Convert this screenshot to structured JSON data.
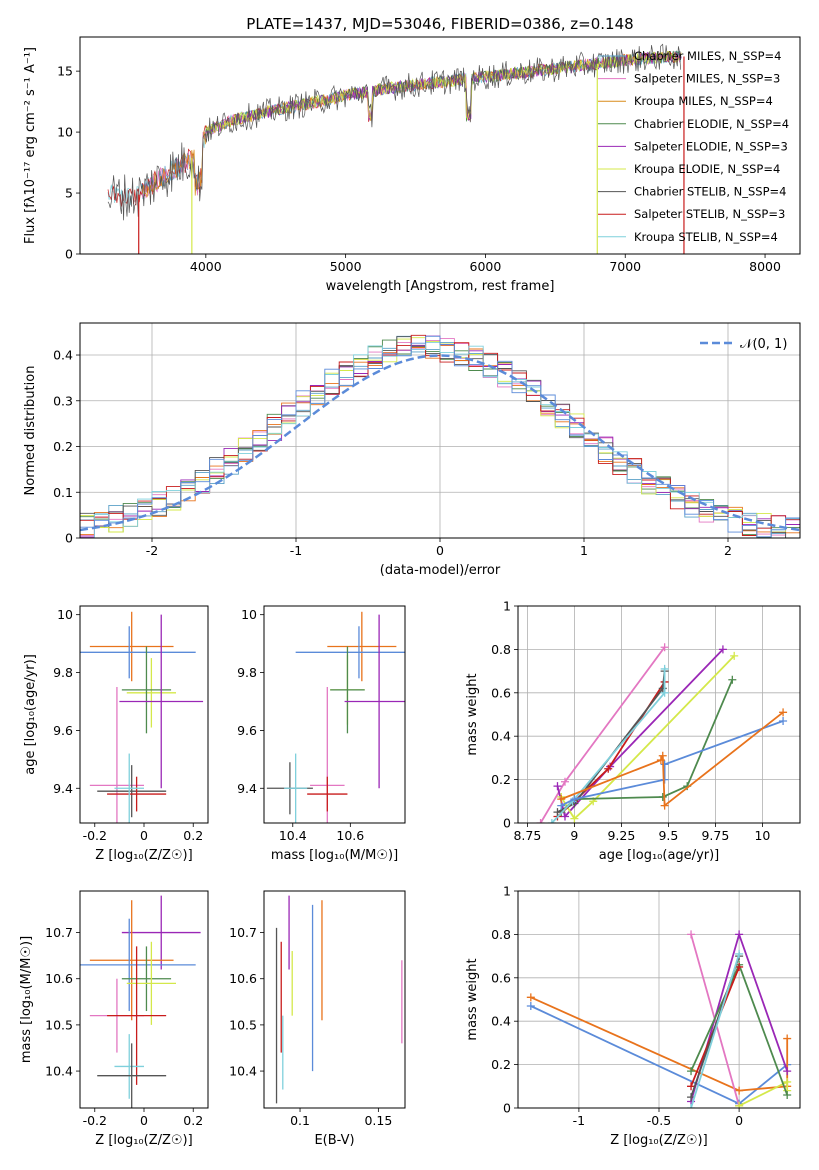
{
  "colors": {
    "chabrier_miles": "#5aa0c8",
    "salpeter_miles": "#e377c2",
    "kroupa_miles": "#d98c1a",
    "chabrier_elodie": "#4e8a4e",
    "salpeter_elodie": "#9a27b6",
    "kroupa_elodie": "#d4e84a",
    "chabrier_stelib": "#555555",
    "salpeter_stelib": "#c81c1c",
    "kroupa_stelib": "#7fd0dc",
    "blue": "#5b8bd9",
    "orange": "#e8731c",
    "normal": "#5b8bd9"
  },
  "chart_data": [
    {
      "id": "spectrum",
      "type": "line",
      "title": "PLATE=1437, MJD=53046, FIBERID=0386, z=0.148",
      "xlabel": "wavelength [Angstrom, rest frame]",
      "ylabel": "Flux [fλ10⁻¹⁷ erg cm⁻² s⁻¹ A⁻¹]",
      "xlim": [
        3100,
        8250
      ],
      "ylim": [
        0,
        17.8
      ],
      "xticks": [
        4000,
        5000,
        6000,
        7000,
        8000
      ],
      "yticks": [
        0,
        5,
        10,
        15
      ],
      "legend_position": "top-right",
      "series": [
        {
          "name": "Chabrier MILES, N_SSP=4",
          "key": "chabrier_miles"
        },
        {
          "name": "Salpeter MILES, N_SSP=3",
          "key": "salpeter_miles"
        },
        {
          "name": "Kroupa MILES, N_SSP=4",
          "key": "kroupa_miles"
        },
        {
          "name": "Chabrier ELODIE, N_SSP=4",
          "key": "chabrier_elodie"
        },
        {
          "name": "Salpeter ELODIE, N_SSP=3",
          "key": "salpeter_elodie"
        },
        {
          "name": "Kroupa ELODIE, N_SSP=4",
          "key": "kroupa_elodie"
        },
        {
          "name": "Chabrier STELIB, N_SSP=4",
          "key": "chabrier_stelib"
        },
        {
          "name": "Salpeter STELIB, N_SSP=3",
          "key": "salpeter_stelib"
        },
        {
          "name": "Kroupa STELIB, N_SSP=4",
          "key": "kroupa_stelib"
        }
      ],
      "continuum": {
        "x": [
          3300,
          3500,
          3650,
          3800,
          3950,
          4000,
          4200,
          4500,
          4800,
          5000,
          5300,
          5600,
          5900,
          6200,
          6500,
          6800,
          7000,
          7200,
          7400
        ],
        "y": [
          4.8,
          4.7,
          6.0,
          7.2,
          8.2,
          10.0,
          11.0,
          11.8,
          12.5,
          13.0,
          13.6,
          14.0,
          14.4,
          14.8,
          15.2,
          15.6,
          15.9,
          16.1,
          16.2
        ]
      },
      "drops": [
        {
          "x": 3520,
          "key": "salpeter_stelib"
        },
        {
          "x": 3900,
          "key": "kroupa_elodie"
        },
        {
          "x": 6800,
          "key": "kroupa_elodie"
        },
        {
          "x": 7420,
          "key": "salpeter_stelib"
        }
      ]
    },
    {
      "id": "residuals",
      "type": "line",
      "xlabel": "(data-model)/error",
      "ylabel": "Normed distribution",
      "xlim": [
        -2.5,
        2.5
      ],
      "ylim": [
        0,
        0.47
      ],
      "xticks": [
        -2,
        -1,
        0,
        1,
        2
      ],
      "yticks": [
        0.0,
        0.1,
        0.2,
        0.3,
        0.4
      ],
      "grid": true,
      "legend_position": "top-right",
      "legend_label": "𝒩(0, 1)"
    },
    {
      "id": "age_vs_z",
      "type": "scatter",
      "xlabel": "Z [log₁₀(Z/Z☉)]",
      "ylabel": "age [log₁₀(age/yr)]",
      "xlim": [
        -0.26,
        0.26
      ],
      "ylim": [
        9.28,
        10.03
      ],
      "xticks": [
        -0.2,
        0.0,
        0.2
      ],
      "yticks": [
        9.4,
        9.6,
        9.8,
        10.0
      ],
      "points": [
        {
          "key": "orange",
          "x": -0.05,
          "xerr": 0.17,
          "y": 9.89,
          "yerr": 0.12
        },
        {
          "key": "blue",
          "x": -0.06,
          "xerr": 0.27,
          "y": 9.87,
          "yerr": 0.09
        },
        {
          "key": "kroupa_elodie",
          "x": 0.03,
          "xerr": 0.1,
          "y": 9.73,
          "yerr": 0.12
        },
        {
          "key": "chabrier_elodie",
          "x": 0.01,
          "xerr": 0.1,
          "y": 9.74,
          "yerr": 0.15
        },
        {
          "key": "salpeter_elodie",
          "x": 0.07,
          "xerr": 0.17,
          "y": 9.7,
          "yerr": 0.3
        },
        {
          "key": "salpeter_miles",
          "x": -0.11,
          "xerr": 0.11,
          "y": 9.41,
          "yerr": 0.34
        },
        {
          "key": "chabrier_stelib",
          "x": -0.05,
          "xerr": 0.14,
          "y": 9.39,
          "yerr": 0.09
        },
        {
          "key": "salpeter_stelib",
          "x": -0.03,
          "xerr": 0.12,
          "y": 9.38,
          "yerr": 0.06
        },
        {
          "key": "kroupa_stelib",
          "x": -0.06,
          "xerr": 0.06,
          "y": 9.4,
          "yerr": 0.12
        }
      ]
    },
    {
      "id": "age_vs_mass",
      "type": "scatter",
      "xlabel": "mass [log₁₀(M/M☉)]",
      "xlim": [
        10.3,
        10.79
      ],
      "ylim": [
        9.28,
        10.03
      ],
      "xticks": [
        10.4,
        10.6
      ],
      "yticks": [
        9.4,
        9.6,
        9.8,
        10.0
      ],
      "points": [
        {
          "key": "orange",
          "x": 10.64,
          "xerr": 0.12,
          "y": 9.89,
          "yerr": 0.12
        },
        {
          "key": "blue",
          "x": 10.63,
          "xerr": 0.22,
          "y": 9.87,
          "yerr": 0.09
        },
        {
          "key": "kroupa_elodie",
          "x": 10.59,
          "xerr": 0.06,
          "y": 9.74,
          "yerr": 0.12
        },
        {
          "key": "chabrier_elodie",
          "x": 10.59,
          "xerr": 0.06,
          "y": 9.74,
          "yerr": 0.15
        },
        {
          "key": "salpeter_elodie",
          "x": 10.7,
          "xerr": 0.12,
          "y": 9.7,
          "yerr": 0.3
        },
        {
          "key": "salpeter_miles",
          "x": 10.52,
          "xerr": 0.06,
          "y": 9.41,
          "yerr": 0.34
        },
        {
          "key": "chabrier_stelib",
          "x": 10.39,
          "xerr": 0.08,
          "y": 9.4,
          "yerr": 0.09
        },
        {
          "key": "salpeter_stelib",
          "x": 10.52,
          "xerr": 0.07,
          "y": 9.38,
          "yerr": 0.06
        },
        {
          "key": "kroupa_stelib",
          "x": 10.41,
          "xerr": 0.04,
          "y": 9.4,
          "yerr": 0.12
        }
      ]
    },
    {
      "id": "weight_vs_age",
      "type": "line",
      "xlabel": "age [log₁₀(age/yr)]",
      "ylabel": "mass weight",
      "xlim": [
        8.7,
        10.2
      ],
      "ylim": [
        0,
        1.0
      ],
      "xticks": [
        8.75,
        9.0,
        9.25,
        9.5,
        9.75,
        10.0
      ],
      "yticks": [
        0.0,
        0.2,
        0.4,
        0.6,
        0.8,
        1.0
      ],
      "grid": true,
      "series": [
        {
          "key": "salpeter_miles",
          "x": [
            8.82,
            8.95,
            9.48
          ],
          "y": [
            0.0,
            0.19,
            0.81
          ]
        },
        {
          "key": "salpeter_elodie",
          "x": [
            8.91,
            8.95,
            9.19,
            9.79
          ],
          "y": [
            0.17,
            0.03,
            0.26,
            0.8
          ]
        },
        {
          "key": "kroupa_elodie",
          "x": [
            8.93,
            9.0,
            9.1,
            9.85
          ],
          "y": [
            0.12,
            0.02,
            0.1,
            0.77
          ]
        },
        {
          "key": "chabrier_elodie",
          "x": [
            8.93,
            9.0,
            9.47,
            9.6,
            9.84
          ],
          "y": [
            0.05,
            0.11,
            0.12,
            0.17,
            0.66
          ]
        },
        {
          "key": "salpeter_stelib",
          "x": [
            8.91,
            9.0,
            9.18,
            9.48
          ],
          "y": [
            0.03,
            0.1,
            0.25,
            0.65
          ]
        },
        {
          "key": "chabrier_stelib",
          "x": [
            8.91,
            9.0,
            9.47,
            9.48
          ],
          "y": [
            0.05,
            0.09,
            0.62,
            0.7
          ]
        },
        {
          "key": "kroupa_stelib",
          "x": [
            8.88,
            8.99,
            9.48,
            9.48
          ],
          "y": [
            0.0,
            0.1,
            0.6,
            0.71
          ]
        },
        {
          "key": "blue",
          "x": [
            8.93,
            9.0,
            9.48,
            9.48,
            10.11
          ],
          "y": [
            0.08,
            0.11,
            0.2,
            0.27,
            0.47
          ]
        },
        {
          "key": "orange",
          "x": [
            8.93,
            9.46,
            9.47,
            9.48,
            10.11
          ],
          "y": [
            0.11,
            0.29,
            0.31,
            0.08,
            0.51
          ]
        }
      ]
    },
    {
      "id": "mass_vs_z",
      "type": "scatter",
      "xlabel": "Z [log₁₀(Z/Z☉)]",
      "ylabel": "mass [log₁₀(M/M☉)]",
      "xlim": [
        -0.26,
        0.26
      ],
      "ylim": [
        10.32,
        10.79
      ],
      "xticks": [
        -0.2,
        0.0,
        0.2
      ],
      "yticks": [
        10.4,
        10.5,
        10.6,
        10.7
      ],
      "points": [
        {
          "key": "salpeter_elodie",
          "x": 0.07,
          "xerr": 0.16,
          "y": 10.7,
          "yerr": 0.08
        },
        {
          "key": "orange",
          "x": -0.05,
          "xerr": 0.17,
          "y": 10.64,
          "yerr": 0.13
        },
        {
          "key": "blue",
          "x": -0.06,
          "xerr": 0.27,
          "y": 10.63,
          "yerr": 0.1
        },
        {
          "key": "chabrier_elodie",
          "x": 0.01,
          "xerr": 0.1,
          "y": 10.6,
          "yerr": 0.07
        },
        {
          "key": "kroupa_elodie",
          "x": 0.03,
          "xerr": 0.1,
          "y": 10.59,
          "yerr": 0.09
        },
        {
          "key": "salpeter_miles",
          "x": -0.11,
          "xerr": 0.11,
          "y": 10.52,
          "yerr": 0.08
        },
        {
          "key": "salpeter_stelib",
          "x": -0.03,
          "xerr": 0.12,
          "y": 10.52,
          "yerr": 0.15
        },
        {
          "key": "kroupa_stelib",
          "x": -0.06,
          "xerr": 0.06,
          "y": 10.41,
          "yerr": 0.07
        },
        {
          "key": "chabrier_stelib",
          "x": -0.05,
          "xerr": 0.14,
          "y": 10.39,
          "yerr": 0.07
        }
      ]
    },
    {
      "id": "mass_vs_ebv",
      "type": "scatter",
      "xlabel": "E(B-V)",
      "xlim": [
        0.077,
        0.167
      ],
      "ylim": [
        10.32,
        10.79
      ],
      "xticks": [
        0.1,
        0.15
      ],
      "yticks": [
        10.4,
        10.5,
        10.6,
        10.7
      ],
      "points": [
        {
          "key": "chabrier_stelib",
          "x": 0.085,
          "y": 10.52,
          "yerr": 0.19
        },
        {
          "key": "salpeter_stelib",
          "x": 0.088,
          "y": 10.56,
          "yerr": 0.12
        },
        {
          "key": "kroupa_stelib",
          "x": 0.089,
          "y": 10.44,
          "yerr": 0.08
        },
        {
          "key": "salpeter_elodie",
          "x": 0.093,
          "y": 10.7,
          "yerr": 0.08
        },
        {
          "key": "kroupa_elodie",
          "x": 0.095,
          "y": 10.59,
          "yerr": 0.07
        },
        {
          "key": "blue",
          "x": 0.108,
          "y": 10.58,
          "yerr": 0.18
        },
        {
          "key": "orange",
          "x": 0.114,
          "y": 10.64,
          "yerr": 0.13
        },
        {
          "key": "salpeter_miles",
          "x": 0.165,
          "y": 10.55,
          "yerr": 0.09
        }
      ]
    },
    {
      "id": "weight_vs_z",
      "type": "line",
      "xlabel": "Z [log₁₀(Z/Z☉)]",
      "ylabel": "mass weight",
      "xlim": [
        -1.38,
        0.38
      ],
      "ylim": [
        0,
        1.0
      ],
      "xticks": [
        -1.0,
        -0.5,
        0.0
      ],
      "yticks": [
        0.0,
        0.2,
        0.4,
        0.6,
        0.8,
        1.0
      ],
      "grid": true,
      "series": [
        {
          "key": "blue",
          "x": [
            -1.3,
            0.0,
            0.3
          ],
          "y": [
            0.47,
            0.02,
            0.2
          ]
        },
        {
          "key": "orange",
          "x": [
            -1.3,
            0.0,
            0.3,
            0.3
          ],
          "y": [
            0.51,
            0.08,
            0.1,
            0.32
          ]
        },
        {
          "key": "salpeter_miles",
          "x": [
            -0.3,
            0.0
          ],
          "y": [
            0.8,
            0.01
          ]
        },
        {
          "key": "salpeter_elodie",
          "x": [
            -0.3,
            0.0,
            0.3
          ],
          "y": [
            0.03,
            0.8,
            0.17
          ]
        },
        {
          "key": "kroupa_elodie",
          "x": [
            0.0,
            0.3,
            0.3
          ],
          "y": [
            0.01,
            0.12,
            0.08
          ]
        },
        {
          "key": "chabrier_elodie",
          "x": [
            -0.3,
            0.0,
            0.3
          ],
          "y": [
            0.17,
            0.66,
            0.06
          ]
        },
        {
          "key": "salpeter_stelib",
          "x": [
            -0.3,
            0.0
          ],
          "y": [
            0.1,
            0.65
          ]
        },
        {
          "key": "chabrier_stelib",
          "x": [
            -0.3,
            0.0
          ],
          "y": [
            0.05,
            0.7
          ]
        },
        {
          "key": "kroupa_stelib",
          "x": [
            -0.3,
            0.0
          ],
          "y": [
            0.0,
            0.71
          ]
        }
      ]
    }
  ]
}
